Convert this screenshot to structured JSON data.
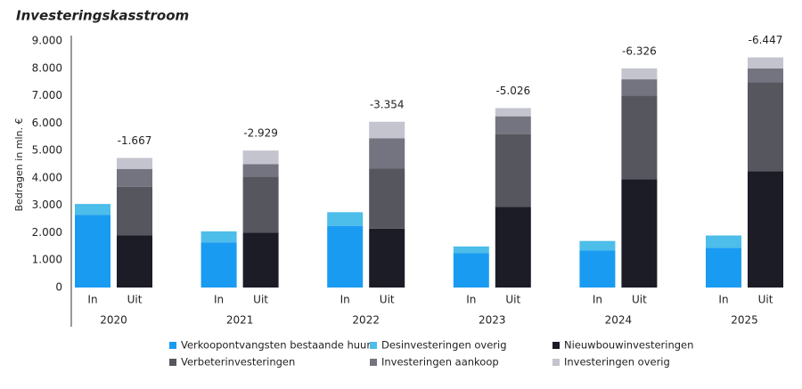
{
  "chart_data": {
    "type": "grouped-stacked-bar",
    "title": "Investeringskasstroom",
    "y_label": "Bedragen in mln. €",
    "categories": [
      "2020",
      "2021",
      "2022",
      "2023",
      "2024",
      "2025"
    ],
    "stacks": [
      "In",
      "Uit"
    ],
    "series": [
      {
        "name": "Verkoopontvangsten bestaande huur",
        "color": "#1a9bf2",
        "stack": 0,
        "values": [
          2650,
          1650,
          2250,
          1250,
          1350,
          1450
        ]
      },
      {
        "name": "Desinvesteringen overig",
        "color": "#4dbde9",
        "stack": 0,
        "values": [
          400,
          400,
          500,
          250,
          350,
          450
        ]
      },
      {
        "name": "Nieuwbouwinvesteringen",
        "color": "#1c1c26",
        "stack": 1,
        "values": [
          1900,
          2000,
          2150,
          2950,
          3950,
          4250
        ]
      },
      {
        "name": "Verbeterinvesteringen",
        "color": "#56565f",
        "stack": 1,
        "values": [
          1780,
          2050,
          2200,
          2650,
          3050,
          3250
        ]
      },
      {
        "name": "Investeringen aankoop",
        "color": "#747480",
        "stack": 1,
        "values": [
          650,
          450,
          1100,
          650,
          600,
          500
        ]
      },
      {
        "name": "Investeringen overig",
        "color": "#c4c4cf",
        "stack": 1,
        "values": [
          400,
          500,
          600,
          300,
          400,
          400
        ]
      }
    ],
    "net": {
      "values": [
        -1667,
        -2929,
        -3354,
        -5026,
        -6326,
        -6447
      ],
      "value_labels": [
        "-1.667",
        "-2.929",
        "-3.354",
        "-5.026",
        "-6.326",
        "-6.447"
      ]
    },
    "ylim": [
      0,
      9000
    ],
    "yticks": [
      0,
      {
        "value": 1000,
        "label": "1.000"
      },
      {
        "value": 2000,
        "label": "2.000"
      },
      {
        "value": 3000,
        "label": "3.000"
      },
      {
        "value": 4000,
        "label": "4.000"
      },
      {
        "value": 5000,
        "label": "5.000"
      },
      {
        "value": 6000,
        "label": "6.000"
      },
      {
        "value": 7000,
        "label": "7.000"
      },
      {
        "value": 8000,
        "label": "8.000"
      },
      {
        "value": 9000,
        "label": "9.000"
      }
    ],
    "grid": false
  }
}
